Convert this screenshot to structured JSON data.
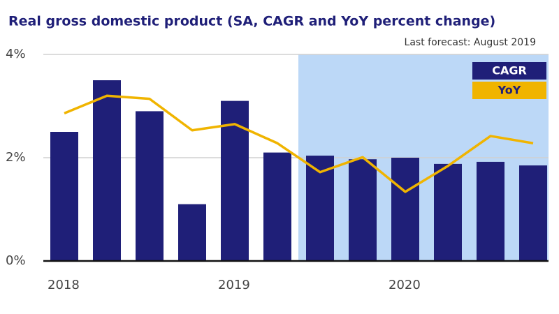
{
  "chart_data": {
    "type": "bar-line",
    "title": "Real gross domestic product (SA, CAGR and YoY percent change)",
    "subtitle": "Last forecast: August 2019",
    "categories": [
      "2018",
      null,
      null,
      null,
      "2019",
      null,
      null,
      null,
      "2020",
      null,
      null,
      null
    ],
    "series": [
      {
        "name": "CAGR",
        "type": "bar",
        "color": "#1f1f78",
        "values": [
          2.5,
          3.5,
          2.9,
          1.1,
          3.1,
          2.1,
          2.04,
          1.97,
          2.0,
          1.88,
          1.92,
          1.85
        ]
      },
      {
        "name": "YoY",
        "type": "line",
        "color": "#f0b400",
        "values": [
          2.86,
          3.2,
          3.14,
          2.53,
          2.65,
          2.28,
          1.72,
          2.01,
          1.34,
          1.84,
          2.42,
          2.28
        ]
      }
    ],
    "ylim": [
      0,
      4
    ],
    "yticks": [
      {
        "value": 0,
        "label": "0%"
      },
      {
        "value": 2,
        "label": "2%"
      },
      {
        "value": 4,
        "label": "4%"
      }
    ],
    "grid": true,
    "legend": "top-right"
  }
}
